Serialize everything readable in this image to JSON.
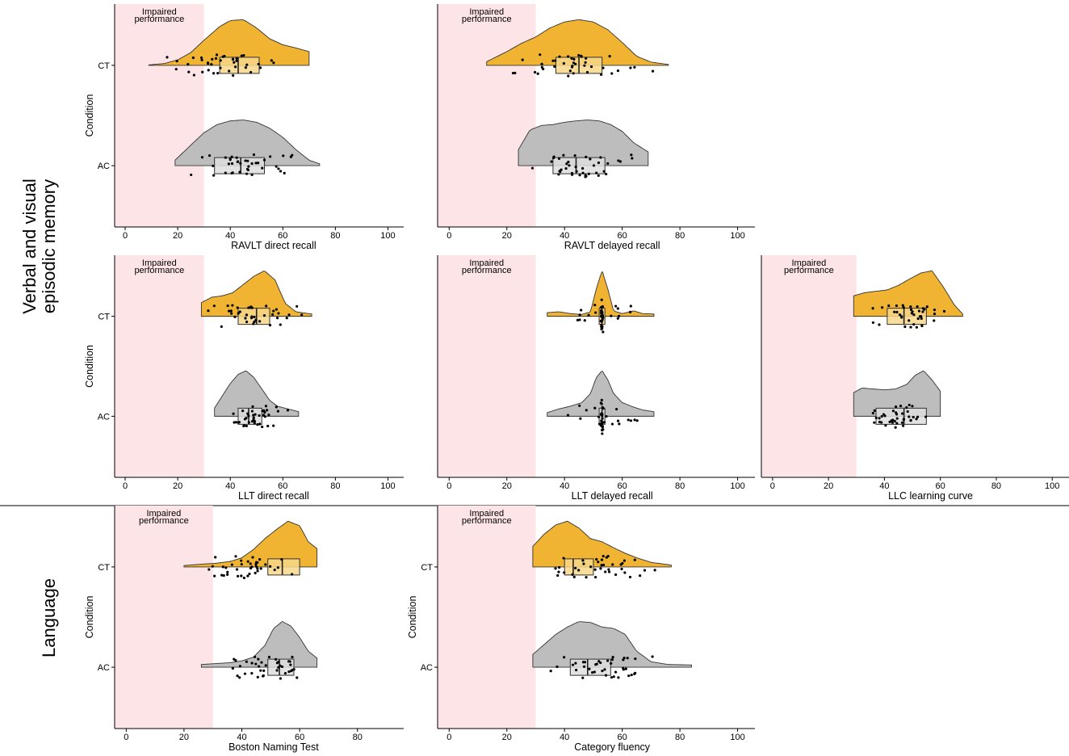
{
  "groups": [
    {
      "id": "memory",
      "lines": [
        "Verbal and visual",
        "episodic memory"
      ]
    },
    {
      "id": "language",
      "lines": [
        "Language"
      ]
    }
  ],
  "common": {
    "ylabel": "Condition",
    "conditions": [
      "CT",
      "AC"
    ],
    "impaired_label": [
      "Impaired",
      "performance"
    ],
    "impaired_max": 30,
    "colors": {
      "CT": "#f0b432",
      "AC": "#bdbdbd",
      "impaired": "#fde4e6",
      "box_CT": "#f7d78a",
      "box_AC": "#dedede"
    }
  },
  "chart_data": [
    {
      "type": "raincloud",
      "title": "",
      "xlabel": "RAVLT direct recall",
      "ylabel": "Condition",
      "xlim": [
        -4,
        106
      ],
      "xticks": [
        0,
        20,
        40,
        60,
        80,
        100
      ],
      "series": [
        {
          "name": "CT",
          "range": [
            9,
            70
          ],
          "box": {
            "q1": 36,
            "median": 43,
            "q3": 51
          },
          "density": {
            "x": [
              9,
              15,
              20,
              25,
              30,
              36,
              40,
              45,
              50,
              55,
              60,
              65,
              70
            ],
            "y": [
              0.01,
              0.04,
              0.12,
              0.28,
              0.55,
              0.85,
              0.98,
              1.0,
              0.82,
              0.58,
              0.45,
              0.38,
              0.3
            ]
          }
        },
        {
          "name": "AC",
          "range": [
            19,
            74
          ],
          "box": {
            "q1": 34,
            "median": 44,
            "q3": 53
          },
          "density": {
            "x": [
              19,
              25,
              30,
              35,
              40,
              45,
              50,
              55,
              60,
              65,
              70,
              74
            ],
            "y": [
              0.12,
              0.45,
              0.72,
              0.9,
              0.98,
              1.0,
              0.95,
              0.82,
              0.62,
              0.35,
              0.12,
              0.04
            ]
          }
        }
      ]
    },
    {
      "type": "raincloud",
      "title": "",
      "xlabel": "RAVLT delayed recall",
      "ylabel": "Condition",
      "xlim": [
        -4,
        106
      ],
      "xticks": [
        0,
        20,
        40,
        60,
        80,
        100
      ],
      "series": [
        {
          "name": "CT",
          "range": [
            13,
            76
          ],
          "box": {
            "q1": 37,
            "median": 45,
            "q3": 53
          },
          "density": {
            "x": [
              13,
              20,
              25,
              30,
              35,
              40,
              45,
              50,
              55,
              60,
              65,
              70,
              76
            ],
            "y": [
              0.08,
              0.3,
              0.48,
              0.62,
              0.82,
              0.95,
              1.0,
              0.95,
              0.78,
              0.5,
              0.2,
              0.07,
              0.02
            ]
          }
        },
        {
          "name": "AC",
          "range": [
            24,
            69
          ],
          "box": {
            "q1": 36,
            "median": 44,
            "q3": 54
          },
          "density": {
            "x": [
              24,
              28,
              32,
              36,
              40,
              44,
              48,
              52,
              56,
              60,
              64,
              69
            ],
            "y": [
              0.35,
              0.78,
              0.88,
              0.9,
              0.95,
              0.98,
              1.0,
              0.98,
              0.9,
              0.75,
              0.5,
              0.3
            ]
          }
        }
      ]
    },
    {
      "type": "raincloud",
      "title": "",
      "xlabel": "LLT direct recall",
      "ylabel": "Condition",
      "xlim": [
        -4,
        106
      ],
      "xticks": [
        0,
        20,
        40,
        60,
        80,
        100
      ],
      "series": [
        {
          "name": "CT",
          "range": [
            29,
            71
          ],
          "box": {
            "q1": 43,
            "median": 50,
            "q3": 55
          },
          "density": {
            "x": [
              29,
              33,
              37,
              41,
              45,
              49,
              53,
              57,
              61,
              65,
              71
            ],
            "y": [
              0.3,
              0.42,
              0.45,
              0.52,
              0.7,
              0.88,
              1.0,
              0.8,
              0.28,
              0.1,
              0.05
            ]
          }
        },
        {
          "name": "AC",
          "range": [
            34,
            66
          ],
          "box": {
            "q1": 43,
            "median": 47,
            "q3": 52
          },
          "density": {
            "x": [
              34,
              37,
              40,
              43,
              46,
              49,
              52,
              55,
              58,
              62,
              66
            ],
            "y": [
              0.18,
              0.45,
              0.72,
              0.92,
              1.0,
              0.85,
              0.6,
              0.35,
              0.22,
              0.16,
              0.1
            ]
          }
        }
      ]
    },
    {
      "type": "raincloud",
      "title": "",
      "xlabel": "LLT delayed recall",
      "ylabel": "Condition",
      "xlim": [
        -4,
        106
      ],
      "xticks": [
        0,
        20,
        40,
        60,
        80,
        100
      ],
      "series": [
        {
          "name": "CT",
          "range": [
            34,
            71
          ],
          "box": {
            "q1": 52,
            "median": 53,
            "q3": 54
          },
          "density": {
            "x": [
              34,
              38,
              42,
              46,
              49,
              51,
              53,
              55,
              57,
              60,
              64,
              67,
              71
            ],
            "y": [
              0.08,
              0.1,
              0.06,
              0.04,
              0.1,
              0.6,
              1.0,
              0.6,
              0.12,
              0.06,
              0.12,
              0.06,
              0.05
            ]
          }
        },
        {
          "name": "AC",
          "range": [
            34,
            71
          ],
          "box": {
            "q1": 52,
            "median": 53,
            "q3": 54
          },
          "density": {
            "x": [
              34,
              38,
              42,
              46,
              49,
              51,
              53,
              55,
              57,
              60,
              64,
              67,
              71
            ],
            "y": [
              0.08,
              0.16,
              0.22,
              0.3,
              0.5,
              0.85,
              1.0,
              0.8,
              0.5,
              0.3,
              0.2,
              0.14,
              0.1
            ]
          }
        }
      ]
    },
    {
      "type": "raincloud",
      "title": "",
      "xlabel": "LLC learning curve",
      "ylabel": "Condition",
      "xlim": [
        -4,
        106
      ],
      "xticks": [
        0,
        20,
        40,
        60,
        80,
        100
      ],
      "series": [
        {
          "name": "CT",
          "range": [
            29,
            68
          ],
          "box": {
            "q1": 41,
            "median": 47,
            "q3": 55
          },
          "density": {
            "x": [
              29,
              33,
              37,
              41,
              45,
              49,
              53,
              57,
              61,
              65,
              68
            ],
            "y": [
              0.45,
              0.52,
              0.55,
              0.58,
              0.68,
              0.82,
              0.95,
              1.0,
              0.65,
              0.25,
              0.05
            ]
          }
        },
        {
          "name": "AC",
          "range": [
            29,
            60
          ],
          "box": {
            "q1": 37,
            "median": 47,
            "q3": 55
          },
          "density": {
            "x": [
              29,
              32,
              36,
              40,
              44,
              48,
              51,
              54,
              57,
              60
            ],
            "y": [
              0.52,
              0.62,
              0.6,
              0.58,
              0.6,
              0.7,
              0.9,
              1.0,
              0.8,
              0.55
            ]
          }
        }
      ]
    },
    {
      "type": "raincloud",
      "title": "",
      "xlabel": "Boston Naming Test",
      "ylabel": "Condition",
      "xlim": [
        -4,
        96
      ],
      "xticks": [
        0,
        20,
        40,
        60,
        80
      ],
      "series": [
        {
          "name": "CT",
          "range": [
            20,
            66
          ],
          "box": {
            "q1": 49,
            "median": 54,
            "q3": 60
          },
          "density": {
            "x": [
              20,
              26,
              31,
              36,
              40,
              44,
              48,
              52,
              56,
              60,
              63,
              66
            ],
            "y": [
              0.03,
              0.06,
              0.08,
              0.12,
              0.2,
              0.38,
              0.62,
              0.82,
              1.0,
              0.9,
              0.55,
              0.4
            ]
          }
        },
        {
          "name": "AC",
          "range": [
            26,
            66
          ],
          "box": {
            "q1": 49,
            "median": 53,
            "q3": 58
          },
          "density": {
            "x": [
              26,
              31,
              36,
              40,
              44,
              48,
              51,
              54,
              57,
              60,
              63,
              66
            ],
            "y": [
              0.06,
              0.08,
              0.1,
              0.14,
              0.22,
              0.48,
              0.85,
              1.0,
              0.9,
              0.65,
              0.35,
              0.2
            ]
          }
        }
      ]
    },
    {
      "type": "raincloud",
      "title": "",
      "xlabel": "Category fluency",
      "ylabel": "Condition",
      "xlim": [
        -4,
        106
      ],
      "xticks": [
        0,
        20,
        40,
        60,
        80,
        100
      ],
      "series": [
        {
          "name": "CT",
          "range": [
            29,
            77
          ],
          "box": {
            "q1": 40,
            "median": 43,
            "q3": 50
          },
          "density": {
            "x": [
              29,
              33,
              37,
              41,
              45,
              49,
              53,
              57,
              61,
              65,
              70,
              77
            ],
            "y": [
              0.45,
              0.72,
              0.92,
              1.0,
              0.85,
              0.62,
              0.55,
              0.42,
              0.3,
              0.2,
              0.1,
              0.04
            ]
          }
        },
        {
          "name": "AC",
          "range": [
            29,
            84
          ],
          "box": {
            "q1": 42,
            "median": 48,
            "q3": 56
          },
          "density": {
            "x": [
              29,
              33,
              37,
              41,
              45,
              49,
              53,
              57,
              61,
              65,
              70,
              76,
              84
            ],
            "y": [
              0.28,
              0.5,
              0.72,
              0.88,
              1.0,
              0.98,
              0.88,
              0.85,
              0.72,
              0.35,
              0.12,
              0.06,
              0.05
            ]
          }
        }
      ]
    }
  ]
}
